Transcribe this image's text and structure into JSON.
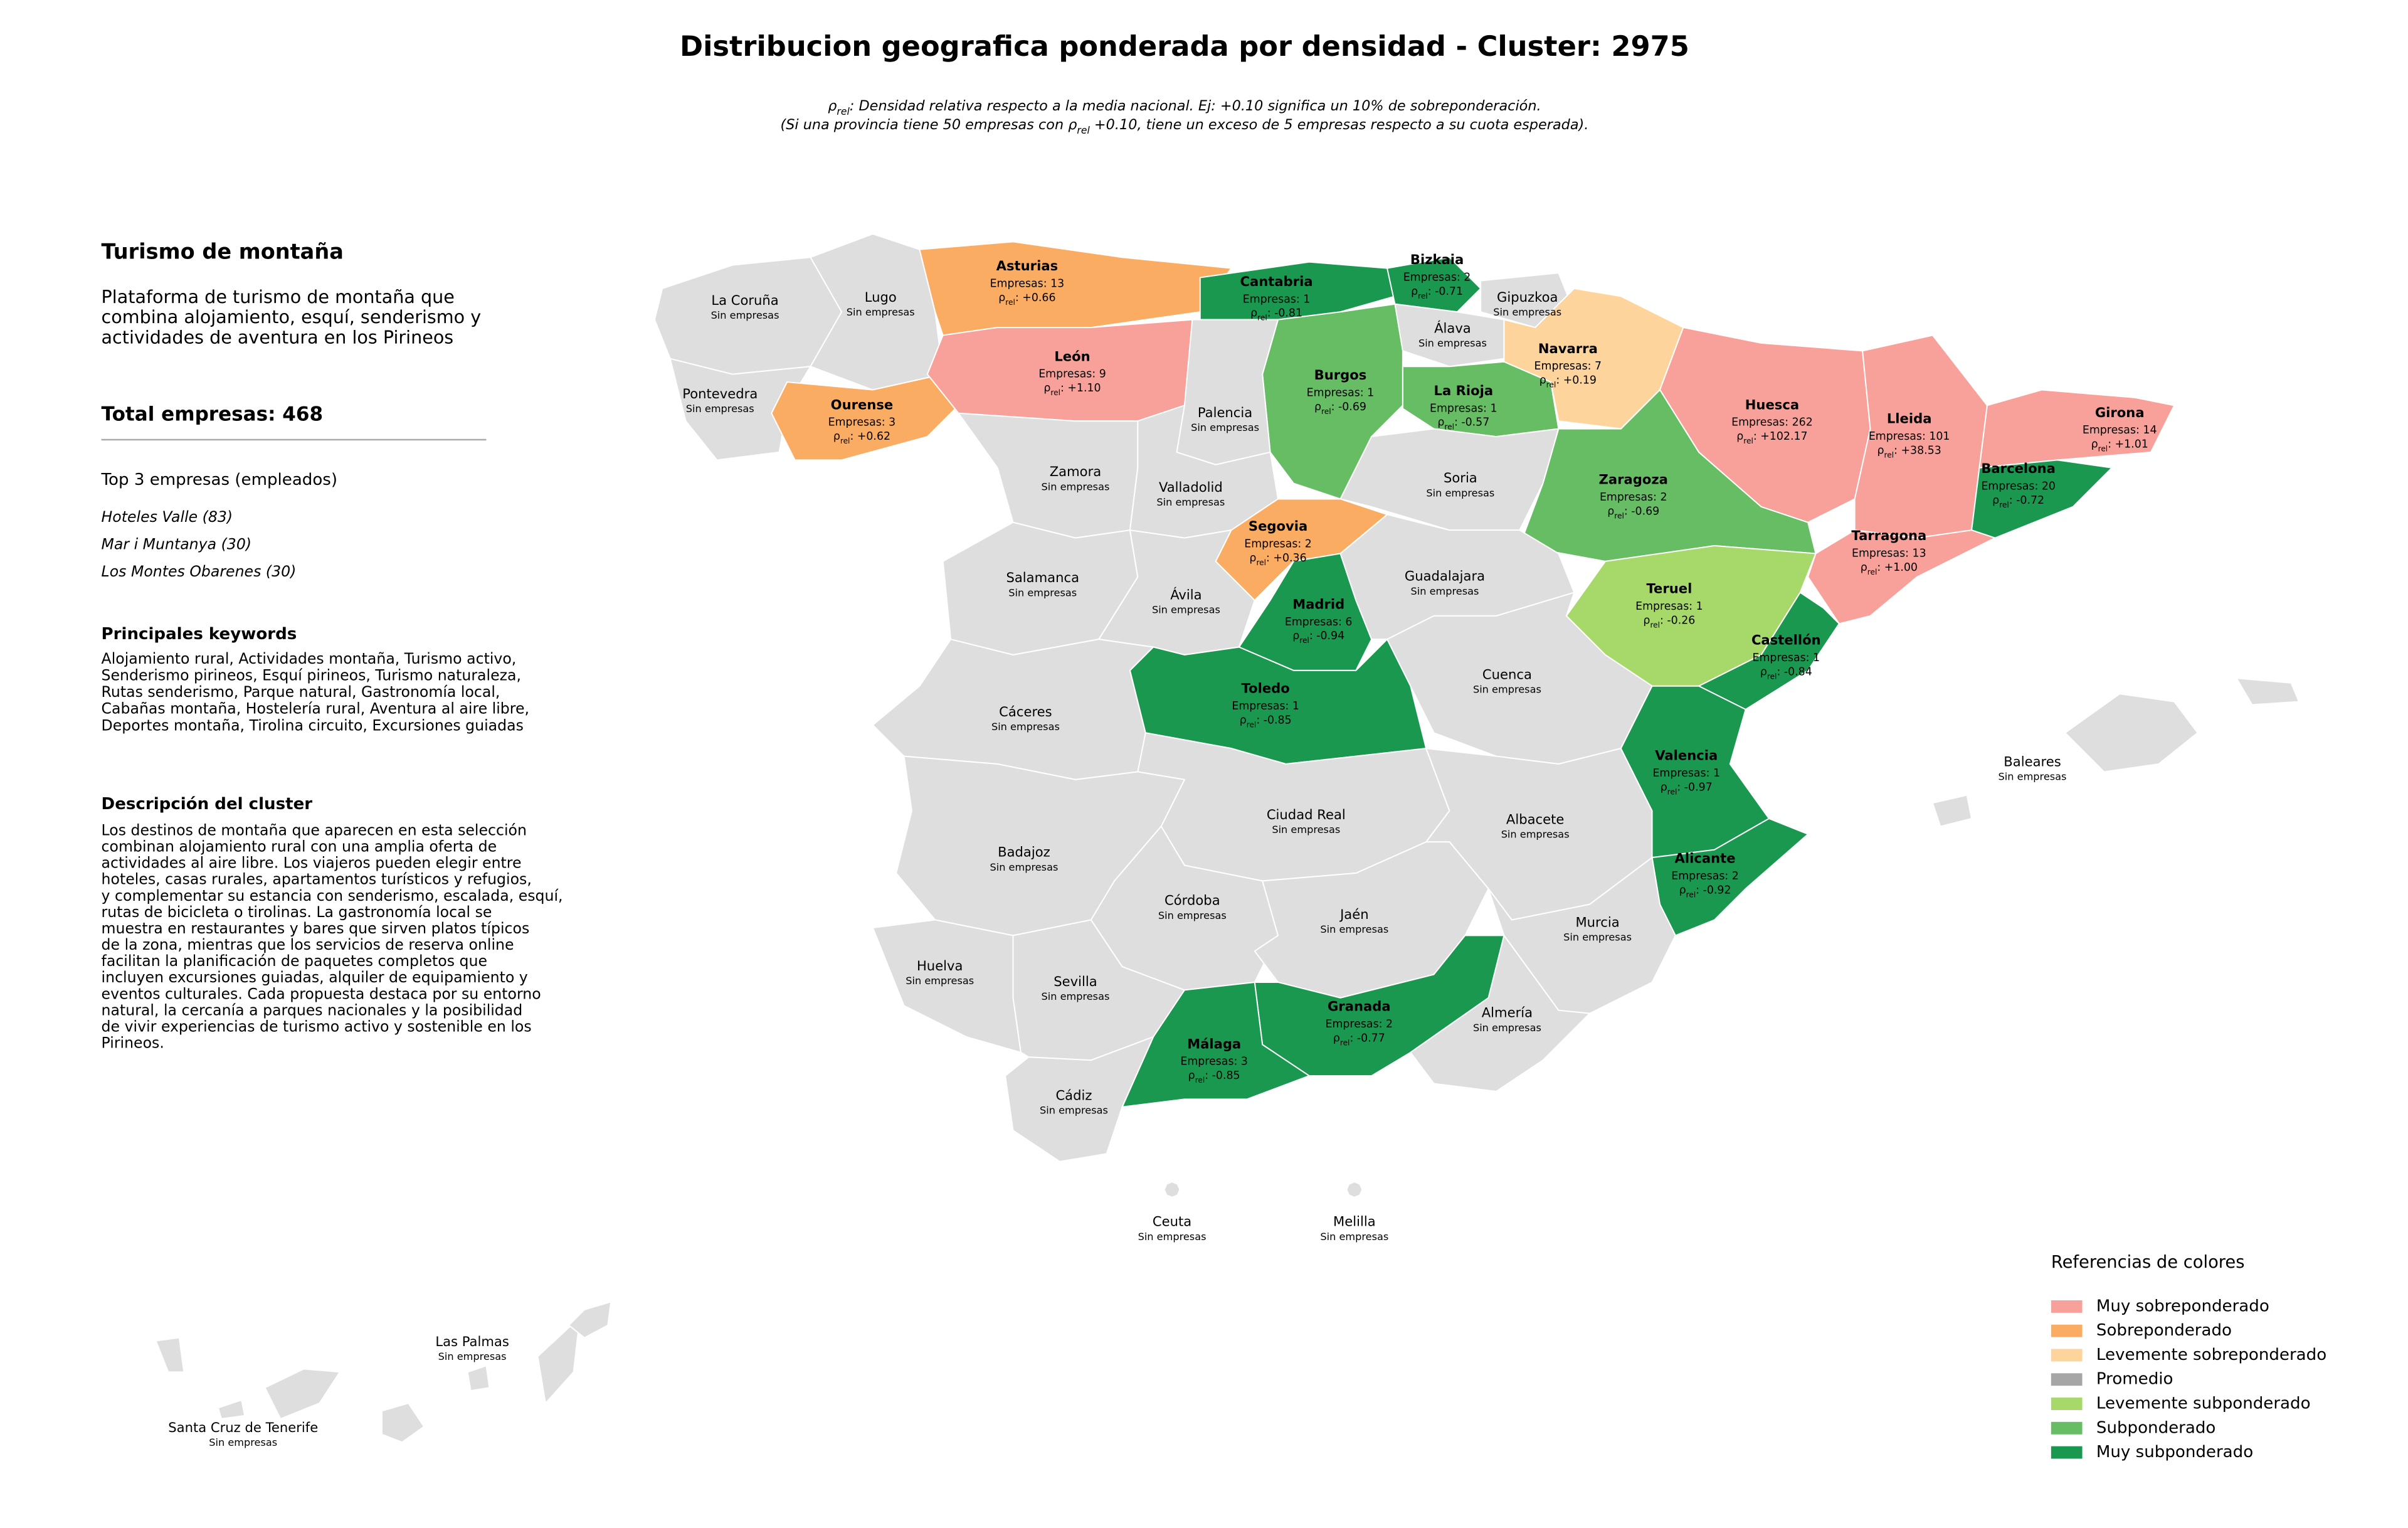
{
  "title": "Distribucion geografica ponderada por densidad - Cluster: 2975",
  "subtitle": [
    {
      "symbol": "ρ",
      "sub": "rel",
      "text": ": Densidad relativa respecto a la media nacional. Ej: +0.10 significa un 10% de sobreponderación."
    },
    {
      "pre": "(Si una provincia tiene 50 empresas con ",
      "symbol": "ρ",
      "sub": "rel",
      "text": " +0.10, tiene un exceso de 5 empresas respecto a su cuota esperada)."
    }
  ],
  "panel": {
    "heading": "Turismo de montaña",
    "intro": [
      "Plataforma de turismo de montaña que",
      "combina alojamiento, esquí, senderismo y",
      "actividades de aventura en los Pirineos"
    ],
    "total": "Total empresas: 468",
    "top_title": "Top 3 empresas (empleados)",
    "top": [
      "Hoteles Valle (83)",
      "Mar i Muntanya (30)",
      "Los Montes Obarenes (30)"
    ],
    "keywords_title": "Principales keywords",
    "keywords": [
      "Alojamiento rural, Actividades montaña, Turismo activo,",
      "Senderismo pirineos, Esquí pirineos, Turismo naturaleza,",
      "Rutas senderismo, Parque natural, Gastronomía local,",
      "Cabañas montaña, Hostelería rural, Aventura al aire libre,",
      "Deportes montaña, Tirolina circuito, Excursiones guiadas"
    ],
    "description_title": "Descripción del cluster",
    "description": [
      "Los destinos de montaña que aparecen en esta selección",
      "combinan alojamiento rural con una amplia oferta de",
      "actividades al aire libre. Los viajeros pueden elegir entre",
      "hoteles, casas rurales, apartamentos turísticos y refugios,",
      "y complementar su estancia con senderismo, escalada, esquí,",
      "rutas de bicicleta o tirolinas. La gastronomía local se",
      "muestra en restaurantes y bares que sirven platos típicos",
      "de la zona, mientras que los servicios de reserva online",
      "facilitan la planificación de paquetes completos que",
      "incluyen excursiones guiadas, alquiler de equipamiento y",
      "eventos culturales. Cada propuesta destaca por su entorno",
      "natural, la cercanía a parques nacionales y la posibilidad",
      "de vivir experiencias de turismo activo y sostenible en los",
      "Pirineos."
    ]
  },
  "provinces": [
    {
      "name": "La Coruña",
      "empresas": "Sin empresas",
      "color": "#dedede"
    },
    {
      "name": "Lugo",
      "empresas": "Sin empresas",
      "color": "#dedede"
    },
    {
      "name": "Pontevedra",
      "empresas": "Sin empresas",
      "color": "#dedede"
    },
    {
      "name": "Ourense",
      "empresas": "Empresas: 3",
      "rho": {
        "symbol": "ρ",
        "sub": "rel",
        "text": ": +0.62"
      },
      "color": "#fbac63"
    },
    {
      "name": "Asturias",
      "empresas": "Empresas: 13",
      "rho": {
        "symbol": "ρ",
        "sub": "rel",
        "text": ": +0.66"
      },
      "color": "#fbac63"
    },
    {
      "name": "León",
      "empresas": "Empresas: 9",
      "rho": {
        "symbol": "ρ",
        "sub": "rel",
        "text": ": +1.10"
      },
      "color": "#f8a19a"
    },
    {
      "name": "Cantabria",
      "empresas": "Empresas: 1",
      "rho": {
        "symbol": "ρ",
        "sub": "rel",
        "text": ": -0.81"
      },
      "color": "#1a9850"
    },
    {
      "name": "Bizkaia",
      "empresas": "Empresas: 2",
      "rho": {
        "symbol": "ρ",
        "sub": "rel",
        "text": ": -0.71"
      },
      "color": "#1a9850"
    },
    {
      "name": "Gipuzkoa",
      "empresas": "Sin empresas",
      "color": "#dedede"
    },
    {
      "name": "Álava",
      "empresas": "Sin empresas",
      "color": "#dedede"
    },
    {
      "name": "Navarra",
      "empresas": "Empresas: 7",
      "rho": {
        "symbol": "ρ",
        "sub": "rel",
        "text": ": +0.19"
      },
      "color": "#fdd49b"
    },
    {
      "name": "Burgos",
      "empresas": "Empresas: 1",
      "rho": {
        "symbol": "ρ",
        "sub": "rel",
        "text": ": -0.69"
      },
      "color": "#66bd63"
    },
    {
      "name": "La Rioja",
      "empresas": "Empresas: 1",
      "rho": {
        "symbol": "ρ",
        "sub": "rel",
        "text": ": -0.57"
      },
      "color": "#66bd63"
    },
    {
      "name": "Palencia",
      "empresas": "Sin empresas",
      "color": "#dedede"
    },
    {
      "name": "Zamora",
      "empresas": "Sin empresas",
      "color": "#dedede"
    },
    {
      "name": "Valladolid",
      "empresas": "Sin empresas",
      "color": "#dedede"
    },
    {
      "name": "Soria",
      "empresas": "Sin empresas",
      "color": "#dedede"
    },
    {
      "name": "Huesca",
      "empresas": "Empresas: 262",
      "rho": {
        "symbol": "ρ",
        "sub": "rel",
        "text": ": +102.17"
      },
      "color": "#f8a19a"
    },
    {
      "name": "Lleida",
      "empresas": "Empresas: 101",
      "rho": {
        "symbol": "ρ",
        "sub": "rel",
        "text": ": +38.53"
      },
      "color": "#f8a19a"
    },
    {
      "name": "Girona",
      "empresas": "Empresas: 14",
      "rho": {
        "symbol": "ρ",
        "sub": "rel",
        "text": ": +1.01"
      },
      "color": "#f8a19a"
    },
    {
      "name": "Barcelona",
      "empresas": "Empresas: 20",
      "rho": {
        "symbol": "ρ",
        "sub": "rel",
        "text": ": -0.72"
      },
      "color": "#1a9850"
    },
    {
      "name": "Zaragoza",
      "empresas": "Empresas: 2",
      "rho": {
        "symbol": "ρ",
        "sub": "rel",
        "text": ": -0.69"
      },
      "color": "#66bd63"
    },
    {
      "name": "Tarragona",
      "empresas": "Empresas: 13",
      "rho": {
        "symbol": "ρ",
        "sub": "rel",
        "text": ": +1.00"
      },
      "color": "#f8a19a"
    },
    {
      "name": "Segovia",
      "empresas": "Empresas: 2",
      "rho": {
        "symbol": "ρ",
        "sub": "rel",
        "text": ": +0.36"
      },
      "color": "#fbac63"
    },
    {
      "name": "Madrid",
      "empresas": "Empresas: 6",
      "rho": {
        "symbol": "ρ",
        "sub": "rel",
        "text": ": -0.94"
      },
      "color": "#1a9850"
    },
    {
      "name": "Guadalajara",
      "empresas": "Sin empresas",
      "color": "#dedede"
    },
    {
      "name": "Salamanca",
      "empresas": "Sin empresas",
      "color": "#dedede"
    },
    {
      "name": "Ávila",
      "empresas": "Sin empresas",
      "color": "#dedede"
    },
    {
      "name": "Teruel",
      "empresas": "Empresas: 1",
      "rho": {
        "symbol": "ρ",
        "sub": "rel",
        "text": ": -0.26"
      },
      "color": "#a6d96a"
    },
    {
      "name": "Castellón",
      "empresas": "Empresas: 1",
      "rho": {
        "symbol": "ρ",
        "sub": "rel",
        "text": ": -0.84"
      },
      "color": "#1a9850"
    },
    {
      "name": "Cuenca",
      "empresas": "Sin empresas",
      "color": "#dedede"
    },
    {
      "name": "Cáceres",
      "empresas": "Sin empresas",
      "color": "#dedede"
    },
    {
      "name": "Toledo",
      "empresas": "Empresas: 1",
      "rho": {
        "symbol": "ρ",
        "sub": "rel",
        "text": ": -0.85"
      },
      "color": "#1a9850"
    },
    {
      "name": "Ciudad Real",
      "empresas": "Sin empresas",
      "color": "#dedede"
    },
    {
      "name": "Albacete",
      "empresas": "Sin empresas",
      "color": "#dedede"
    },
    {
      "name": "Valencia",
      "empresas": "Empresas: 1",
      "rho": {
        "symbol": "ρ",
        "sub": "rel",
        "text": ": -0.97"
      },
      "color": "#1a9850"
    },
    {
      "name": "Alicante",
      "empresas": "Empresas: 2",
      "rho": {
        "symbol": "ρ",
        "sub": "rel",
        "text": ": -0.92"
      },
      "color": "#1a9850"
    },
    {
      "name": "Badajoz",
      "empresas": "Sin empresas",
      "color": "#dedede"
    },
    {
      "name": "Córdoba",
      "empresas": "Sin empresas",
      "color": "#dedede"
    },
    {
      "name": "Jaén",
      "empresas": "Sin empresas",
      "color": "#dedede"
    },
    {
      "name": "Murcia",
      "empresas": "Sin empresas",
      "color": "#dedede"
    },
    {
      "name": "Huelva",
      "empresas": "Sin empresas",
      "color": "#dedede"
    },
    {
      "name": "Sevilla",
      "empresas": "Sin empresas",
      "color": "#dedede"
    },
    {
      "name": "Granada",
      "empresas": "Empresas: 2",
      "rho": {
        "symbol": "ρ",
        "sub": "rel",
        "text": ": -0.77"
      },
      "color": "#1a9850"
    },
    {
      "name": "Almería",
      "empresas": "Sin empresas",
      "color": "#dedede"
    },
    {
      "name": "Málaga",
      "empresas": "Empresas: 3",
      "rho": {
        "symbol": "ρ",
        "sub": "rel",
        "text": ": -0.85"
      },
      "color": "#1a9850"
    },
    {
      "name": "Cádiz",
      "empresas": "Sin empresas",
      "color": "#dedede"
    },
    {
      "name": "Baleares",
      "empresas": "Sin empresas",
      "color": "#dedede"
    },
    {
      "name": "Ceuta",
      "empresas": "Sin empresas",
      "color": "#dedede"
    },
    {
      "name": "Melilla",
      "empresas": "Sin empresas",
      "color": "#dedede"
    },
    {
      "name": "Las Palmas",
      "empresas": "Sin empresas",
      "color": "#dedede"
    },
    {
      "name": "Santa Cruz de Tenerife",
      "empresas": "Sin empresas",
      "color": "#dedede"
    }
  ],
  "legend": {
    "title": "Referencias de colores",
    "items": [
      {
        "name": "Muy sobreponderado",
        "color": "#f8a19a"
      },
      {
        "name": "Sobreponderado",
        "color": "#fbac63"
      },
      {
        "name": "Levemente sobreponderado",
        "color": "#fdd49b"
      },
      {
        "name": "Promedio",
        "color": "#a6a6a6"
      },
      {
        "name": "Levemente subponderado",
        "color": "#a6d96a"
      },
      {
        "name": "Subponderado",
        "color": "#66bd63"
      },
      {
        "name": "Muy subponderado",
        "color": "#1a9850"
      }
    ]
  }
}
